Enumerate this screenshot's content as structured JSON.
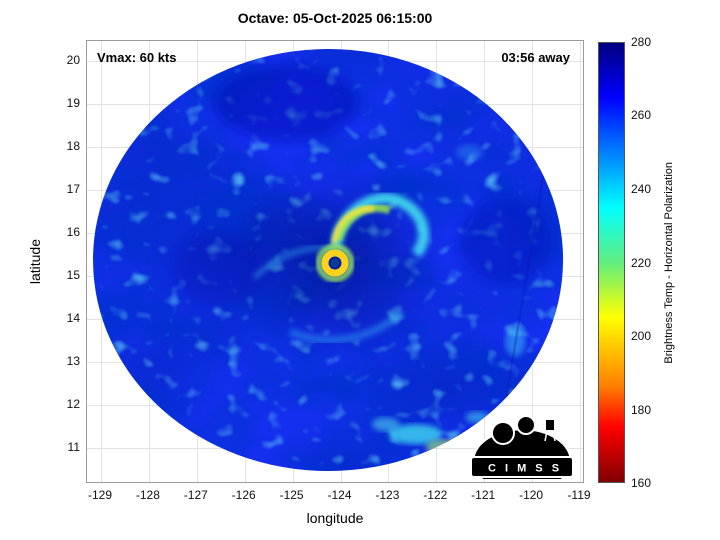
{
  "title": "Octave: 05-Oct-2025 06:15:00",
  "plot": {
    "vmax_label": "Vmax: 60 kts",
    "eta_label": "03:56 away"
  },
  "axes": {
    "xlabel": "longitude",
    "ylabel": "latitude",
    "x_ticks": [
      "-129",
      "-128",
      "-127",
      "-126",
      "-125",
      "-124",
      "-123",
      "-122",
      "-121",
      "-120",
      "-119"
    ],
    "y_ticks": [
      "20",
      "19",
      "18",
      "17",
      "16",
      "15",
      "14",
      "13",
      "12",
      "11"
    ]
  },
  "colorbar": {
    "label": "Brightness Temp - Horizontal Polarization",
    "ticks": [
      "280",
      "260",
      "240",
      "220",
      "200",
      "180",
      "160"
    ]
  },
  "logo": {
    "text": "C I M S S"
  },
  "chart_data": {
    "type": "heatmap",
    "title": "Octave: 05-Oct-2025 06:15:00",
    "xlabel": "longitude",
    "ylabel": "latitude",
    "xlim": [
      -129.3,
      -118.9
    ],
    "ylim": [
      10.2,
      20.5
    ],
    "x_ticks": [
      -129,
      -128,
      -127,
      -126,
      -125,
      -124,
      -123,
      -122,
      -121,
      -120,
      -119
    ],
    "y_ticks": [
      11,
      12,
      13,
      14,
      15,
      16,
      17,
      18,
      19,
      20
    ],
    "grid": true,
    "colorbar": {
      "label": "Brightness Temp - Horizontal Polarization",
      "range": [
        160,
        280
      ],
      "ticks": [
        160,
        180,
        200,
        220,
        240,
        260,
        280
      ],
      "colormap": "jet-reversed (dark red 160 K at bottom to dark blue 280 K at top)",
      "units": "K"
    },
    "annotations": [
      {
        "text": "Vmax: 60 kts",
        "position": "top-left"
      },
      {
        "text": "03:56 away",
        "position": "top-right"
      }
    ],
    "features": {
      "storm_name": "Octave",
      "valid_time": "05-Oct-2025 06:15:00",
      "vmax_kts": 60,
      "time_until_overpass": "03:56",
      "swath": {
        "shape": "circle",
        "center_lon": -124.1,
        "center_lat": 15.3,
        "radius_deg": 4.9
      },
      "eye": {
        "lon": -124.1,
        "lat": 15.3,
        "ring_bt_approx_K": 195,
        "surrounding_band_bt_approx_K": 225
      },
      "background_bt_approx_K": 265,
      "cold_convection_patches": [
        {
          "lon": -123.6,
          "lat": 16.5,
          "bt_approx_K": 215
        },
        {
          "lon": -122.8,
          "lat": 11.0,
          "bt_approx_K": 235
        },
        {
          "lon": -121.5,
          "lat": 12.8,
          "bt_approx_K": 240
        }
      ]
    }
  }
}
